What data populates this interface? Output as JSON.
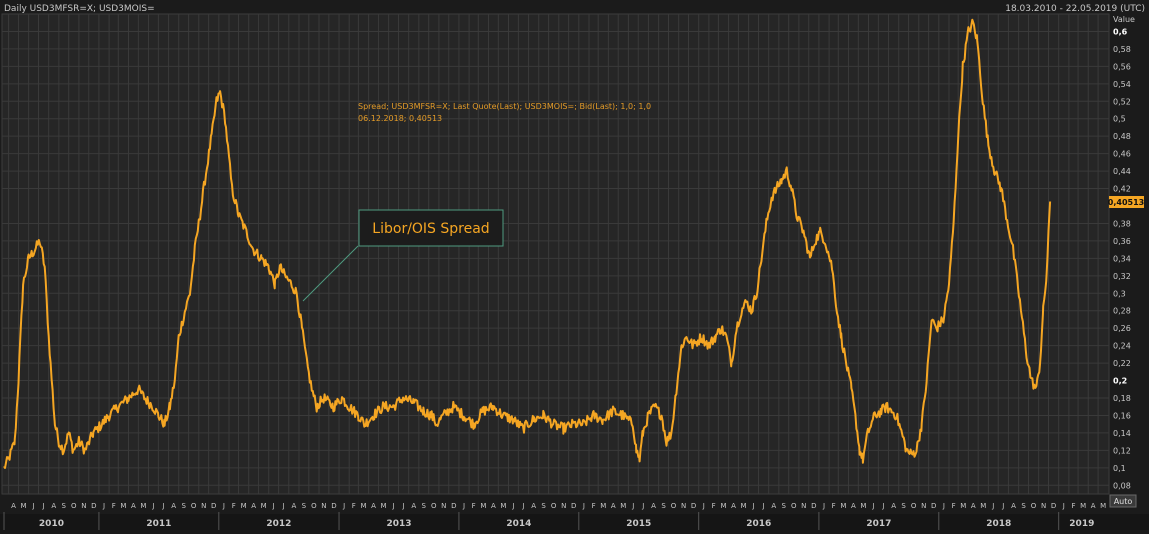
{
  "header": {
    "left": "Daily USD3MFSR=X; USD3MOIS=",
    "right": "18.03.2010 - 22.05.2019 (UTC)"
  },
  "legend": {
    "line1": "Spread; USD3MFSR=X; Last Quote(Last); USD3MOIS=; Bid(Last);  1,0; 1,0",
    "line2": "06.12.2018; 0,40513"
  },
  "annotation": {
    "text": "Libor/OIS Spread"
  },
  "y_axis": {
    "title": "Value",
    "auto_label": "Auto",
    "last_value_label": "0,40513",
    "ticks": [
      "0,08",
      "0,1",
      "0,12",
      "0,14",
      "0,16",
      "0,18",
      "0,2",
      "0,22",
      "0,24",
      "0,26",
      "0,28",
      "0,3",
      "0,32",
      "0,34",
      "0,36",
      "0,38",
      "0,42",
      "0,44",
      "0,46",
      "0,48",
      "0,5",
      "0,52",
      "0,54",
      "0,56",
      "0,58",
      "0,6"
    ]
  },
  "x_axis": {
    "months": [
      "A",
      "M",
      "J",
      "J",
      "A",
      "S",
      "O",
      "N",
      "D",
      "J",
      "F",
      "M",
      "A",
      "M",
      "J",
      "J",
      "A",
      "S",
      "O",
      "N",
      "D",
      "J",
      "F",
      "M",
      "A",
      "M",
      "J",
      "J",
      "A",
      "S",
      "O",
      "N",
      "D",
      "J",
      "F",
      "M",
      "A",
      "M",
      "J",
      "J",
      "A",
      "S",
      "O",
      "N",
      "D",
      "J",
      "F",
      "M",
      "A",
      "M",
      "J",
      "J",
      "A",
      "S",
      "O",
      "N",
      "D",
      "J",
      "F",
      "M",
      "A",
      "M",
      "J",
      "J",
      "A",
      "S",
      "O",
      "N",
      "D",
      "J",
      "F",
      "M",
      "A",
      "M",
      "J",
      "J",
      "A",
      "S",
      "O",
      "N",
      "D",
      "J",
      "F",
      "M",
      "A",
      "M",
      "J",
      "J",
      "A",
      "S",
      "O",
      "N",
      "D",
      "J",
      "F",
      "M",
      "A",
      "M",
      "J",
      "J",
      "A",
      "S",
      "O",
      "N",
      "D",
      "J",
      "F",
      "M",
      "A",
      "M"
    ],
    "years": [
      "2010",
      "2011",
      "2012",
      "2013",
      "2014",
      "2015",
      "2016",
      "2017",
      "2018",
      "2019"
    ]
  },
  "colors": {
    "background": "#1b1b1b",
    "plot": "#262626",
    "grid": "#3a3a3a",
    "series": "#f5a623",
    "text": "#c8c8c8"
  },
  "chart_data": {
    "type": "line",
    "ylim": [
      0.07,
      0.62
    ],
    "series": [
      {
        "name": "Spread; USD3MFSR=X; Last Quote(Last); USD3MOIS=; Bid(Last);  1,0; 1,0",
        "points": [
          [
            "2010-03-18",
            0.1
          ],
          [
            "2010-04-01",
            0.11
          ],
          [
            "2010-04-20",
            0.13
          ],
          [
            "2010-05-01",
            0.2
          ],
          [
            "2010-05-15",
            0.31
          ],
          [
            "2010-06-01",
            0.34
          ],
          [
            "2010-06-20",
            0.35
          ],
          [
            "2010-07-05",
            0.36
          ],
          [
            "2010-07-20",
            0.33
          ],
          [
            "2010-08-01",
            0.25
          ],
          [
            "2010-08-20",
            0.15
          ],
          [
            "2010-09-01",
            0.13
          ],
          [
            "2010-09-15",
            0.12
          ],
          [
            "2010-10-01",
            0.14
          ],
          [
            "2010-10-15",
            0.12
          ],
          [
            "2010-11-01",
            0.13
          ],
          [
            "2010-11-20",
            0.12
          ],
          [
            "2010-12-15",
            0.14
          ],
          [
            "2011-01-10",
            0.15
          ],
          [
            "2011-02-01",
            0.16
          ],
          [
            "2011-03-01",
            0.17
          ],
          [
            "2011-04-01",
            0.18
          ],
          [
            "2011-05-01",
            0.19
          ],
          [
            "2011-05-20",
            0.18
          ],
          [
            "2011-06-15",
            0.17
          ],
          [
            "2011-07-01",
            0.16
          ],
          [
            "2011-07-20",
            0.15
          ],
          [
            "2011-08-05",
            0.17
          ],
          [
            "2011-08-20",
            0.2
          ],
          [
            "2011-09-01",
            0.25
          ],
          [
            "2011-09-20",
            0.28
          ],
          [
            "2011-10-05",
            0.3
          ],
          [
            "2011-10-20",
            0.35
          ],
          [
            "2011-11-05",
            0.39
          ],
          [
            "2011-11-20",
            0.43
          ],
          [
            "2011-12-10",
            0.48
          ],
          [
            "2011-12-25",
            0.52
          ],
          [
            "2012-01-05",
            0.53
          ],
          [
            "2012-01-20",
            0.5
          ],
          [
            "2012-02-10",
            0.42
          ],
          [
            "2012-03-01",
            0.39
          ],
          [
            "2012-03-25",
            0.37
          ],
          [
            "2012-04-15",
            0.35
          ],
          [
            "2012-05-10",
            0.34
          ],
          [
            "2012-06-01",
            0.33
          ],
          [
            "2012-06-20",
            0.31
          ],
          [
            "2012-07-05",
            0.33
          ],
          [
            "2012-07-20",
            0.32
          ],
          [
            "2012-08-10",
            0.31
          ],
          [
            "2012-08-25",
            0.3
          ],
          [
            "2012-09-10",
            0.26
          ],
          [
            "2012-09-25",
            0.22
          ],
          [
            "2012-10-10",
            0.19
          ],
          [
            "2012-10-25",
            0.17
          ],
          [
            "2012-11-15",
            0.18
          ],
          [
            "2012-12-15",
            0.17
          ],
          [
            "2013-01-10",
            0.18
          ],
          [
            "2013-02-01",
            0.17
          ],
          [
            "2013-03-01",
            0.16
          ],
          [
            "2013-03-20",
            0.15
          ],
          [
            "2013-04-15",
            0.16
          ],
          [
            "2013-05-15",
            0.17
          ],
          [
            "2013-06-15",
            0.17
          ],
          [
            "2013-07-15",
            0.18
          ],
          [
            "2013-08-15",
            0.175
          ],
          [
            "2013-09-15",
            0.165
          ],
          [
            "2013-10-10",
            0.16
          ],
          [
            "2013-10-25",
            0.15
          ],
          [
            "2013-11-15",
            0.16
          ],
          [
            "2013-12-15",
            0.17
          ],
          [
            "2014-01-15",
            0.16
          ],
          [
            "2014-02-15",
            0.15
          ],
          [
            "2014-03-15",
            0.165
          ],
          [
            "2014-04-15",
            0.17
          ],
          [
            "2014-05-15",
            0.16
          ],
          [
            "2014-06-15",
            0.155
          ],
          [
            "2014-07-15",
            0.145
          ],
          [
            "2014-08-15",
            0.155
          ],
          [
            "2014-09-15",
            0.16
          ],
          [
            "2014-10-15",
            0.15
          ],
          [
            "2014-11-15",
            0.145
          ],
          [
            "2014-12-15",
            0.15
          ],
          [
            "2015-01-15",
            0.15
          ],
          [
            "2015-02-15",
            0.16
          ],
          [
            "2015-03-15",
            0.155
          ],
          [
            "2015-04-15",
            0.165
          ],
          [
            "2015-05-15",
            0.16
          ],
          [
            "2015-06-15",
            0.15
          ],
          [
            "2015-06-25",
            0.12
          ],
          [
            "2015-07-05",
            0.11
          ],
          [
            "2015-07-15",
            0.14
          ],
          [
            "2015-08-01",
            0.16
          ],
          [
            "2015-08-20",
            0.17
          ],
          [
            "2015-09-10",
            0.16
          ],
          [
            "2015-09-25",
            0.13
          ],
          [
            "2015-10-10",
            0.14
          ],
          [
            "2015-10-25",
            0.19
          ],
          [
            "2015-11-10",
            0.24
          ],
          [
            "2015-11-25",
            0.25
          ],
          [
            "2015-12-15",
            0.24
          ],
          [
            "2016-01-10",
            0.25
          ],
          [
            "2016-02-01",
            0.24
          ],
          [
            "2016-02-20",
            0.25
          ],
          [
            "2016-03-10",
            0.26
          ],
          [
            "2016-03-25",
            0.25
          ],
          [
            "2016-04-10",
            0.22
          ],
          [
            "2016-04-25",
            0.26
          ],
          [
            "2016-05-10",
            0.28
          ],
          [
            "2016-05-25",
            0.29
          ],
          [
            "2016-06-10",
            0.28
          ],
          [
            "2016-06-25",
            0.3
          ],
          [
            "2016-07-10",
            0.34
          ],
          [
            "2016-07-25",
            0.38
          ],
          [
            "2016-08-10",
            0.41
          ],
          [
            "2016-08-25",
            0.42
          ],
          [
            "2016-09-10",
            0.43
          ],
          [
            "2016-09-25",
            0.44
          ],
          [
            "2016-10-10",
            0.42
          ],
          [
            "2016-10-25",
            0.39
          ],
          [
            "2016-11-15",
            0.37
          ],
          [
            "2016-12-05",
            0.34
          ],
          [
            "2016-12-20",
            0.36
          ],
          [
            "2017-01-05",
            0.37
          ],
          [
            "2017-01-20",
            0.36
          ],
          [
            "2017-02-10",
            0.33
          ],
          [
            "2017-02-25",
            0.28
          ],
          [
            "2017-03-10",
            0.25
          ],
          [
            "2017-03-25",
            0.22
          ],
          [
            "2017-04-10",
            0.19
          ],
          [
            "2017-04-25",
            0.15
          ],
          [
            "2017-05-05",
            0.12
          ],
          [
            "2017-05-15",
            0.11
          ],
          [
            "2017-05-30",
            0.14
          ],
          [
            "2017-06-20",
            0.16
          ],
          [
            "2017-07-10",
            0.165
          ],
          [
            "2017-07-25",
            0.17
          ],
          [
            "2017-08-10",
            0.165
          ],
          [
            "2017-08-25",
            0.16
          ],
          [
            "2017-09-10",
            0.14
          ],
          [
            "2017-09-25",
            0.12
          ],
          [
            "2017-10-10",
            0.115
          ],
          [
            "2017-10-25",
            0.12
          ],
          [
            "2017-11-10",
            0.15
          ],
          [
            "2017-11-25",
            0.2
          ],
          [
            "2017-12-10",
            0.27
          ],
          [
            "2017-12-25",
            0.26
          ],
          [
            "2018-01-15",
            0.27
          ],
          [
            "2018-02-01",
            0.31
          ],
          [
            "2018-02-15",
            0.38
          ],
          [
            "2018-03-01",
            0.48
          ],
          [
            "2018-03-15",
            0.56
          ],
          [
            "2018-04-01",
            0.6
          ],
          [
            "2018-04-15",
            0.61
          ],
          [
            "2018-04-28",
            0.59
          ],
          [
            "2018-05-15",
            0.52
          ],
          [
            "2018-06-01",
            0.47
          ],
          [
            "2018-06-20",
            0.44
          ],
          [
            "2018-07-10",
            0.42
          ],
          [
            "2018-07-25",
            0.39
          ],
          [
            "2018-08-15",
            0.35
          ],
          [
            "2018-09-05",
            0.29
          ],
          [
            "2018-09-25",
            0.23
          ],
          [
            "2018-10-10",
            0.2
          ],
          [
            "2018-10-25",
            0.19
          ],
          [
            "2018-11-05",
            0.22
          ],
          [
            "2018-11-15",
            0.28
          ],
          [
            "2018-11-25",
            0.32
          ],
          [
            "2018-12-06",
            0.40513
          ]
        ]
      }
    ]
  }
}
